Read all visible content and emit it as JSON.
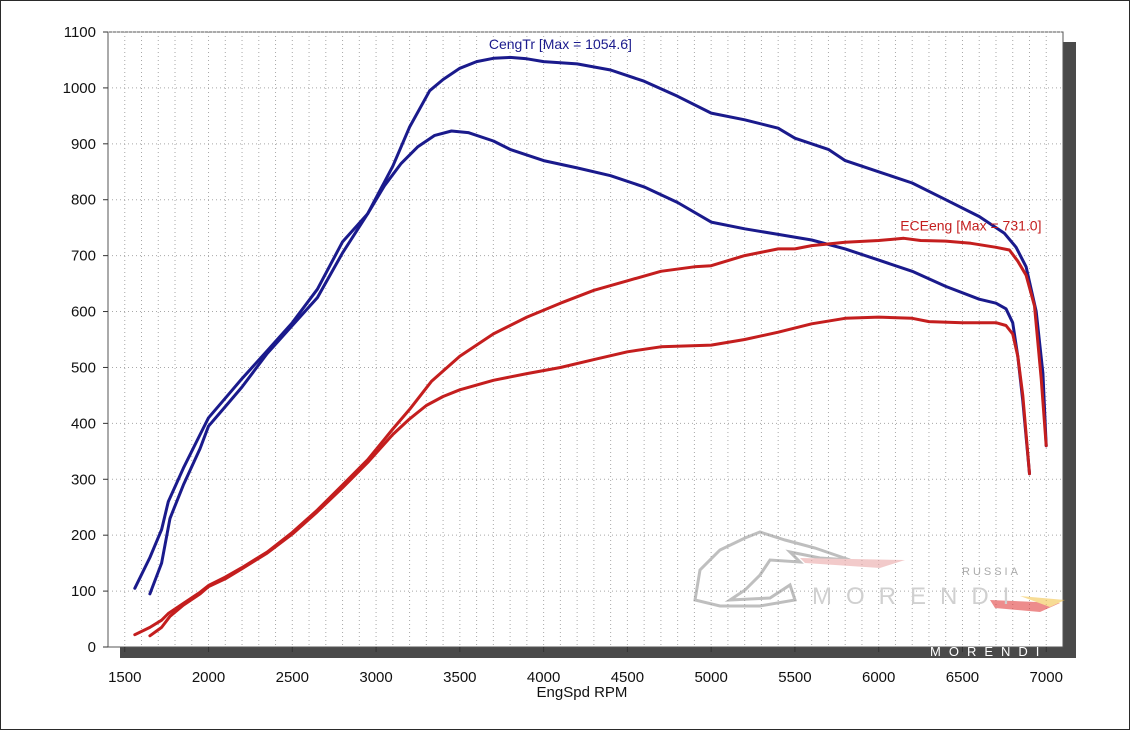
{
  "chart_data": {
    "type": "line",
    "xlabel": "EngSpd  RPM",
    "ylabel": "",
    "xlim": [
      1400,
      7100
    ],
    "ylim": [
      0,
      1100
    ],
    "x_ticks": [
      1500,
      2000,
      2500,
      3000,
      3500,
      4000,
      4500,
      5000,
      5500,
      6000,
      6500,
      7000
    ],
    "y_ticks": [
      0,
      100,
      200,
      300,
      400,
      500,
      600,
      700,
      800,
      900,
      1000,
      1100
    ],
    "grid": true,
    "colors": {
      "torque": "#1a1a8c",
      "power": "#c41e1e"
    },
    "annotations": [
      {
        "text": "CengTr [Max = 1054.6]",
        "color": "#1a1a8c",
        "x": 4100,
        "y": 1070
      },
      {
        "text": "ECEeng [Max = 731.0]",
        "color": "#c41e1e",
        "x": 6550,
        "y": 745
      }
    ],
    "series": [
      {
        "group": "torque",
        "points": [
          [
            1560,
            105
          ],
          [
            1650,
            160
          ],
          [
            1720,
            210
          ],
          [
            1760,
            260
          ],
          [
            1850,
            320
          ],
          [
            1950,
            380
          ],
          [
            2000,
            410
          ],
          [
            2100,
            445
          ],
          [
            2200,
            480
          ],
          [
            2350,
            530
          ],
          [
            2500,
            580
          ],
          [
            2650,
            640
          ],
          [
            2800,
            725
          ],
          [
            2950,
            775
          ],
          [
            3100,
            860
          ],
          [
            3200,
            930
          ],
          [
            3320,
            995
          ],
          [
            3400,
            1015
          ],
          [
            3500,
            1035
          ],
          [
            3600,
            1047
          ],
          [
            3700,
            1053
          ],
          [
            3800,
            1054.6
          ],
          [
            3900,
            1052
          ],
          [
            4000,
            1047
          ],
          [
            4200,
            1043
          ],
          [
            4400,
            1032
          ],
          [
            4600,
            1012
          ],
          [
            4800,
            985
          ],
          [
            5000,
            955
          ],
          [
            5200,
            943
          ],
          [
            5400,
            928
          ],
          [
            5500,
            910
          ],
          [
            5700,
            890
          ],
          [
            5800,
            870
          ],
          [
            6000,
            850
          ],
          [
            6200,
            830
          ],
          [
            6400,
            800
          ],
          [
            6600,
            770
          ],
          [
            6750,
            740
          ],
          [
            6820,
            715
          ],
          [
            6880,
            680
          ],
          [
            6940,
            600
          ],
          [
            6980,
            490
          ],
          [
            7000,
            360
          ]
        ]
      },
      {
        "group": "torque",
        "points": [
          [
            1650,
            95
          ],
          [
            1720,
            150
          ],
          [
            1770,
            230
          ],
          [
            1850,
            290
          ],
          [
            1950,
            355
          ],
          [
            2000,
            395
          ],
          [
            2100,
            430
          ],
          [
            2200,
            465
          ],
          [
            2350,
            525
          ],
          [
            2500,
            575
          ],
          [
            2650,
            625
          ],
          [
            2800,
            705
          ],
          [
            2950,
            775
          ],
          [
            3050,
            825
          ],
          [
            3150,
            865
          ],
          [
            3250,
            895
          ],
          [
            3350,
            915
          ],
          [
            3450,
            923
          ],
          [
            3550,
            920
          ],
          [
            3700,
            905
          ],
          [
            3800,
            890
          ],
          [
            4000,
            870
          ],
          [
            4200,
            857
          ],
          [
            4400,
            843
          ],
          [
            4600,
            823
          ],
          [
            4800,
            795
          ],
          [
            5000,
            760
          ],
          [
            5200,
            748
          ],
          [
            5400,
            738
          ],
          [
            5600,
            728
          ],
          [
            5800,
            712
          ],
          [
            6000,
            692
          ],
          [
            6200,
            672
          ],
          [
            6400,
            645
          ],
          [
            6600,
            622
          ],
          [
            6700,
            615
          ],
          [
            6760,
            605
          ],
          [
            6800,
            580
          ],
          [
            6830,
            520
          ],
          [
            6860,
            440
          ],
          [
            6900,
            310
          ]
        ]
      },
      {
        "group": "power",
        "points": [
          [
            1560,
            22
          ],
          [
            1650,
            35
          ],
          [
            1720,
            48
          ],
          [
            1760,
            60
          ],
          [
            1850,
            78
          ],
          [
            1950,
            98
          ],
          [
            2000,
            110
          ],
          [
            2100,
            125
          ],
          [
            2200,
            142
          ],
          [
            2350,
            170
          ],
          [
            2500,
            205
          ],
          [
            2650,
            245
          ],
          [
            2800,
            290
          ],
          [
            2950,
            335
          ],
          [
            3100,
            390
          ],
          [
            3200,
            425
          ],
          [
            3330,
            475
          ],
          [
            3500,
            520
          ],
          [
            3700,
            560
          ],
          [
            3900,
            590
          ],
          [
            4100,
            615
          ],
          [
            4300,
            638
          ],
          [
            4500,
            655
          ],
          [
            4700,
            672
          ],
          [
            4900,
            680
          ],
          [
            5000,
            682
          ],
          [
            5200,
            700
          ],
          [
            5400,
            712
          ],
          [
            5500,
            712
          ],
          [
            5600,
            718
          ],
          [
            5800,
            724
          ],
          [
            6000,
            727
          ],
          [
            6150,
            731
          ],
          [
            6250,
            727
          ],
          [
            6400,
            726
          ],
          [
            6550,
            722
          ],
          [
            6700,
            715
          ],
          [
            6780,
            710
          ],
          [
            6830,
            690
          ],
          [
            6880,
            665
          ],
          [
            6930,
            610
          ],
          [
            6970,
            480
          ],
          [
            7000,
            360
          ]
        ]
      },
      {
        "group": "power",
        "points": [
          [
            1650,
            20
          ],
          [
            1720,
            35
          ],
          [
            1770,
            55
          ],
          [
            1850,
            75
          ],
          [
            1950,
            95
          ],
          [
            2000,
            108
          ],
          [
            2100,
            122
          ],
          [
            2200,
            140
          ],
          [
            2350,
            168
          ],
          [
            2500,
            202
          ],
          [
            2650,
            242
          ],
          [
            2800,
            285
          ],
          [
            2950,
            330
          ],
          [
            3100,
            380
          ],
          [
            3200,
            408
          ],
          [
            3300,
            432
          ],
          [
            3400,
            448
          ],
          [
            3500,
            460
          ],
          [
            3700,
            477
          ],
          [
            3900,
            489
          ],
          [
            4100,
            500
          ],
          [
            4300,
            514
          ],
          [
            4500,
            528
          ],
          [
            4700,
            537
          ],
          [
            5000,
            540
          ],
          [
            5200,
            550
          ],
          [
            5400,
            563
          ],
          [
            5600,
            578
          ],
          [
            5800,
            588
          ],
          [
            6000,
            590
          ],
          [
            6200,
            588
          ],
          [
            6300,
            582
          ],
          [
            6500,
            580
          ],
          [
            6700,
            580
          ],
          [
            6760,
            575
          ],
          [
            6800,
            560
          ],
          [
            6830,
            520
          ],
          [
            6860,
            450
          ],
          [
            6900,
            310
          ]
        ]
      }
    ]
  },
  "watermark": {
    "text1": "MORENDI",
    "text2": "RUSSIA",
    "text3": "MORENDI"
  }
}
